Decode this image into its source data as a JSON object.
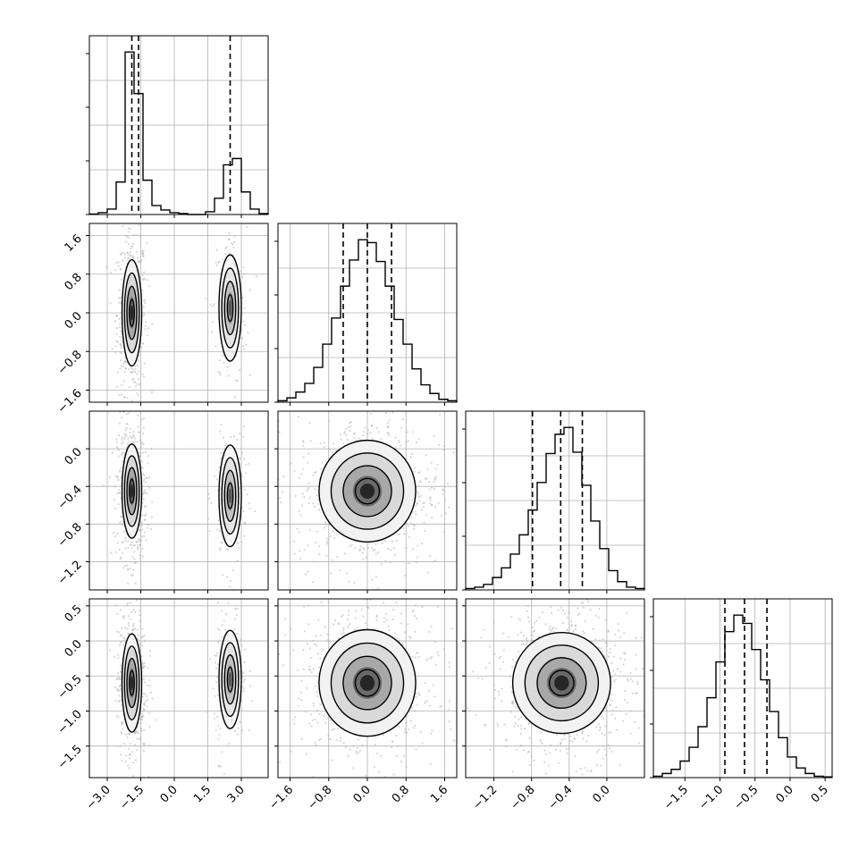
{
  "chart_data": {
    "type": "corner",
    "n_params": 4,
    "grid": true,
    "params": [
      {
        "ticks": [
          -3.0,
          -1.5,
          0.0,
          1.5,
          3.0
        ],
        "tick_labels": [
          "−3.0",
          "−1.5",
          "0.0",
          "1.5",
          "3.0"
        ],
        "range": [
          -3.8,
          4.2
        ],
        "quantiles": [
          -1.9,
          -1.6,
          2.5
        ],
        "histogram": {
          "bin_edges": [
            -3.8,
            -3.4,
            -3.0,
            -2.6,
            -2.2,
            -1.8,
            -1.4,
            -1.0,
            -0.6,
            -0.2,
            0.2,
            0.6,
            1.0,
            1.4,
            1.8,
            2.2,
            2.6,
            3.0,
            3.4,
            3.8,
            4.2
          ],
          "counts": [
            0.5,
            2,
            6,
            36,
            180,
            134,
            38,
            10,
            5,
            2,
            1,
            0,
            0,
            3,
            18,
            55,
            62,
            25,
            6,
            1
          ]
        }
      },
      {
        "ticks": [
          -1.6,
          -0.8,
          0.0,
          0.8,
          1.6
        ],
        "tick_labels": [
          "−1.6",
          "−0.8",
          "0.0",
          "0.8",
          "1.6"
        ],
        "range": [
          -1.85,
          1.85
        ],
        "quantiles": [
          -0.5,
          0.0,
          0.5
        ],
        "histogram": {
          "bin_edges": [
            -1.85,
            -1.665,
            -1.48,
            -1.295,
            -1.11,
            -0.925,
            -0.74,
            -0.555,
            -0.37,
            -0.185,
            0.0,
            0.185,
            0.37,
            0.555,
            0.74,
            0.925,
            1.11,
            1.295,
            1.48,
            1.665,
            1.85
          ],
          "counts": [
            1,
            3,
            7,
            13,
            24,
            40,
            58,
            80,
            98,
            112,
            110,
            97,
            80,
            57,
            40,
            23,
            12,
            6,
            2,
            1
          ]
        }
      },
      {
        "ticks": [
          -1.2,
          -0.8,
          -0.4,
          0.0
        ],
        "tick_labels": [
          "−1.2",
          "−0.8",
          "−0.4",
          "0.0"
        ],
        "range": [
          -1.5,
          0.4
        ],
        "quantiles": [
          -0.79,
          -0.49,
          -0.26
        ],
        "histogram": {
          "bin_edges": [
            -1.5,
            -1.405,
            -1.31,
            -1.215,
            -1.12,
            -1.025,
            -0.93,
            -0.835,
            -0.74,
            -0.645,
            -0.55,
            -0.455,
            -0.36,
            -0.265,
            -0.17,
            -0.075,
            0.02,
            0.115,
            0.21,
            0.305,
            0.4
          ],
          "counts": [
            1,
            2,
            4,
            9,
            16,
            26,
            40,
            58,
            78,
            99,
            113,
            118,
            100,
            76,
            50,
            30,
            14,
            6,
            2,
            1
          ]
        }
      },
      {
        "ticks": [
          -1.5,
          -1.0,
          -0.5,
          0.0,
          0.5
        ],
        "tick_labels": [
          "−1.5",
          "−1.0",
          "−0.5",
          "0.0",
          "0.5"
        ],
        "range": [
          -1.95,
          0.6
        ],
        "quantiles": [
          -0.93,
          -0.65,
          -0.33
        ],
        "histogram": {
          "bin_edges": [
            -1.95,
            -1.8225,
            -1.695,
            -1.5675,
            -1.44,
            -1.3125,
            -1.185,
            -1.0575,
            -0.93,
            -0.8025,
            -0.675,
            -0.5475,
            -0.42,
            -0.2925,
            -0.165,
            -0.0375,
            0.09,
            0.2175,
            0.345,
            0.4725,
            0.6
          ],
          "counts": [
            1,
            3,
            6,
            12,
            22,
            37,
            58,
            84,
            106,
            118,
            112,
            93,
            71,
            48,
            29,
            15,
            7,
            3,
            1,
            0.5
          ]
        }
      }
    ],
    "pairs": [
      {
        "row": 1,
        "col": 0,
        "modes": [
          {
            "mx": -1.9,
            "my": 0.0,
            "sx": 0.22,
            "sy": 0.55,
            "w": 0.73
          },
          {
            "mx": 2.5,
            "my": 0.1,
            "sx": 0.25,
            "sy": 0.55,
            "w": 0.27
          }
        ]
      },
      {
        "row": 2,
        "col": 0,
        "modes": [
          {
            "mx": -1.9,
            "my": -0.45,
            "sx": 0.22,
            "sy": 0.25,
            "w": 0.73
          },
          {
            "mx": 2.5,
            "my": -0.5,
            "sx": 0.25,
            "sy": 0.27,
            "w": 0.27
          }
        ]
      },
      {
        "row": 2,
        "col": 1,
        "modes": [
          {
            "mx": 0.0,
            "my": -0.45,
            "sx": 0.5,
            "sy": 0.27,
            "w": 1.0
          }
        ]
      },
      {
        "row": 3,
        "col": 0,
        "modes": [
          {
            "mx": -1.9,
            "my": -0.6,
            "sx": 0.22,
            "sy": 0.35,
            "w": 0.73
          },
          {
            "mx": 2.5,
            "my": -0.55,
            "sx": 0.25,
            "sy": 0.35,
            "w": 0.27
          }
        ]
      },
      {
        "row": 3,
        "col": 1,
        "modes": [
          {
            "mx": 0.0,
            "my": -0.6,
            "sx": 0.5,
            "sy": 0.38,
            "w": 1.0
          }
        ]
      },
      {
        "row": 3,
        "col": 2,
        "modes": [
          {
            "mx": -0.48,
            "my": -0.6,
            "sx": 0.26,
            "sy": 0.36,
            "w": 1.0
          }
        ]
      }
    ],
    "contour_levels_sigma": [
      0.5,
      1.0,
      1.5,
      2.0
    ]
  }
}
